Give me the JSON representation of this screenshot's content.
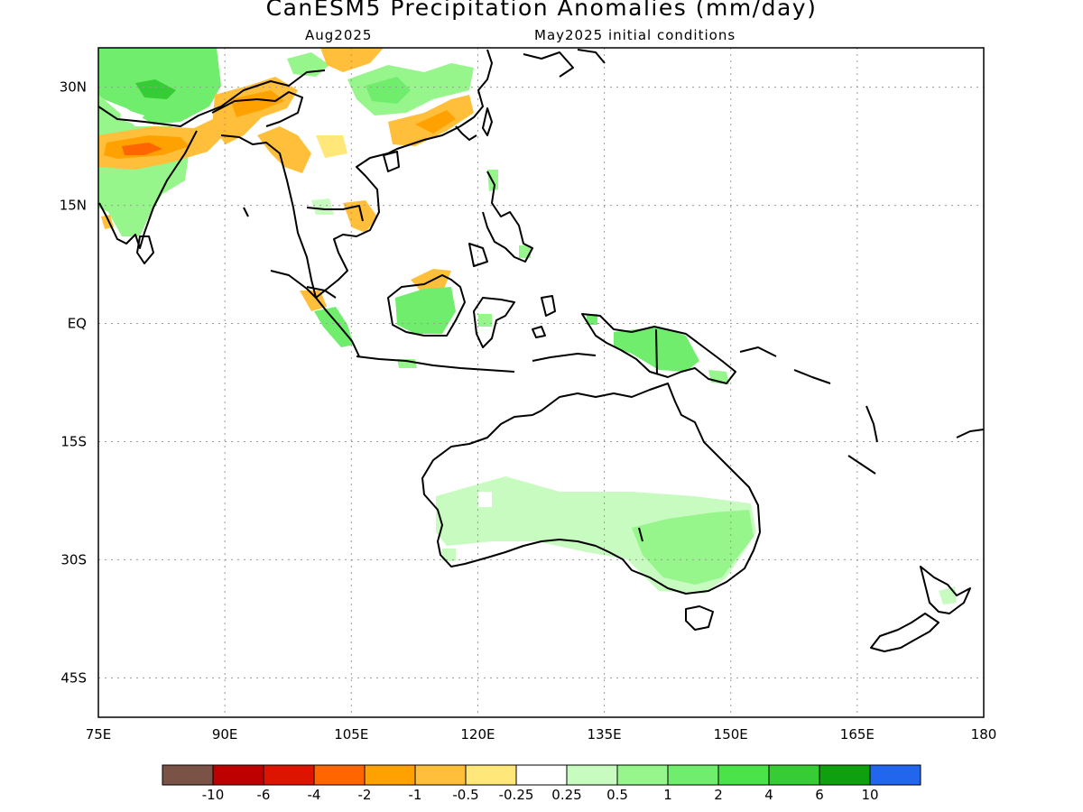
{
  "title": "CanESM5 Precipitation Anomalies (mm/day)",
  "subtitle_left": "Aug2025",
  "subtitle_right": "May2025 initial conditions",
  "map": {
    "lon_range": [
      75,
      180
    ],
    "lat_range": [
      -50,
      35
    ],
    "x_ticks": [
      "75E",
      "90E",
      "105E",
      "120E",
      "135E",
      "150E",
      "165E",
      "180"
    ],
    "y_ticks": [
      "30N",
      "15N",
      "EQ",
      "15S",
      "30S",
      "45S"
    ],
    "grid": "dotted"
  },
  "colorbar": {
    "colors": [
      "#7a5246",
      "#bd0000",
      "#dd1500",
      "#ff6600",
      "#ffa100",
      "#ffbf3a",
      "#ffe77a",
      "#ffffff",
      "#c7fbc0",
      "#96f58b",
      "#70ed6c",
      "#4ae34a",
      "#36cc36",
      "#0ea00e",
      "#2266ee"
    ],
    "labels": [
      "-10",
      "-6",
      "-4",
      "-2",
      "-1",
      "-0.5",
      "-0.25",
      "0.25",
      "0.5",
      "1",
      "2",
      "4",
      "6",
      "10"
    ]
  }
}
